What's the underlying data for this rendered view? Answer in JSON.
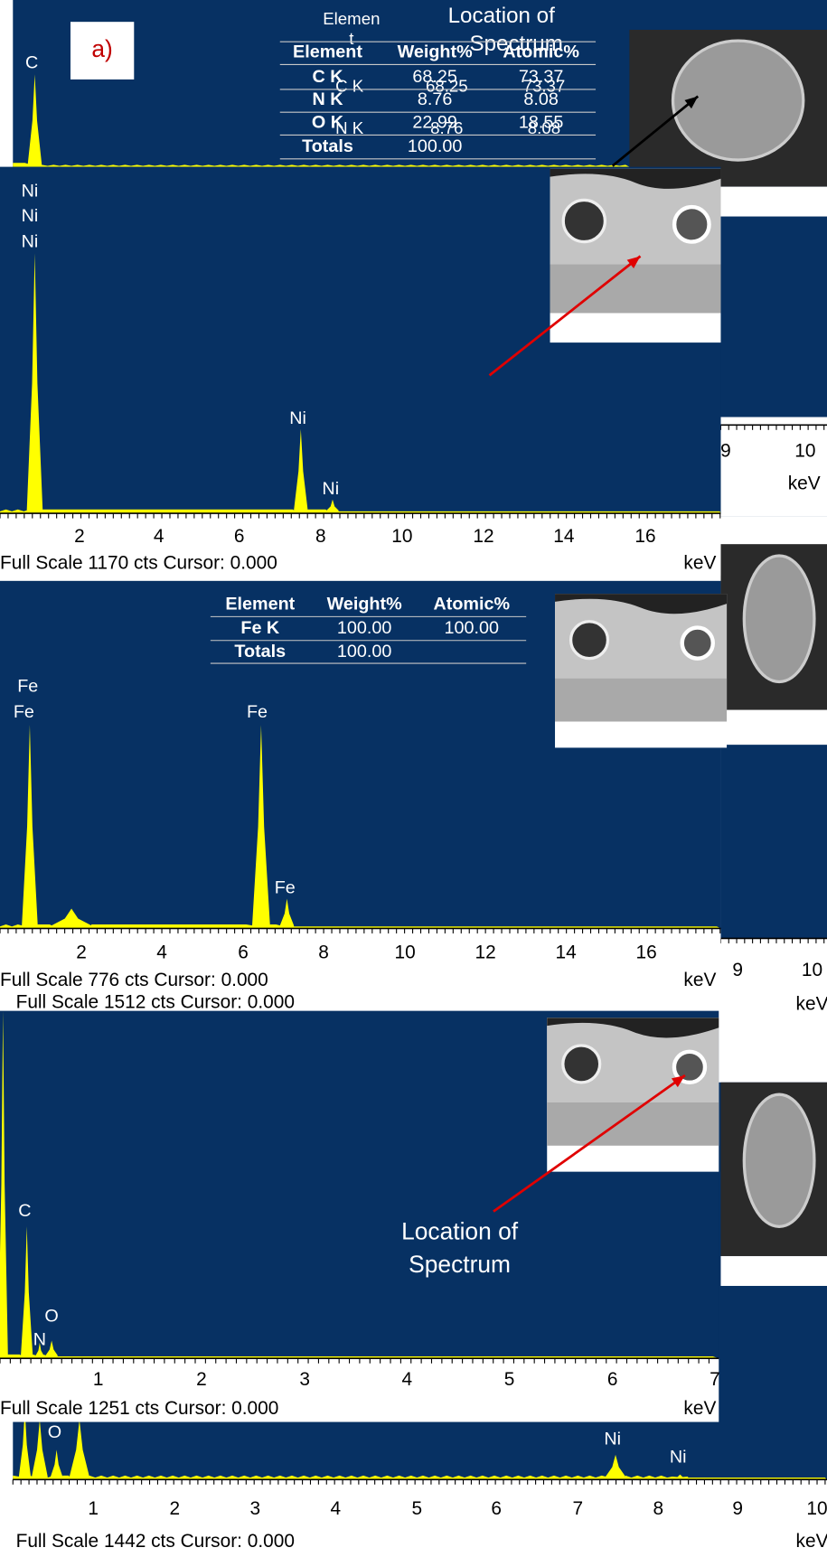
{
  "panel_a": {
    "label": "a)",
    "peak_labels": [
      "C"
    ],
    "overlap_text": [
      "Elemen",
      "t",
      "Location of",
      "Spectrum",
      "C K",
      "68.25",
      "73.37",
      "N K",
      "8.76",
      "8.08"
    ],
    "table": {
      "columns": [
        "Element",
        "Weight%",
        "Atomic%"
      ],
      "rows": [
        [
          "C K",
          "68.25",
          "73.37"
        ],
        [
          "N K",
          "8.76",
          "8.08"
        ],
        [
          "O K",
          "22.99",
          "18.55"
        ],
        [
          "Totals",
          "100.00"
        ]
      ]
    },
    "axis_ticks": [
      "9",
      "10"
    ],
    "axis_unit": "keV"
  },
  "panel_b": {
    "peak_labels": [
      "Ni",
      "Ni",
      "Ni",
      "Ni",
      "Ni"
    ],
    "axis_ticks": [
      "2",
      "4",
      "6",
      "8",
      "10",
      "12",
      "14",
      "16"
    ],
    "axis_unit": "keV",
    "footer": "Full Scale 1170 cts Cursor: 0.000"
  },
  "panel_c": {
    "axis_ticks": [
      "9",
      "10"
    ],
    "axis_unit": "keV",
    "footer": "Full Scale 1512 cts Cursor: 0.000"
  },
  "panel_d": {
    "table": {
      "columns": [
        "Element",
        "Weight%",
        "Atomic%"
      ],
      "rows": [
        [
          "Fe K",
          "100.00",
          "100.00"
        ],
        [
          "Totals",
          "100.00"
        ]
      ]
    },
    "peak_labels": [
      "Fe",
      "Fe",
      "Fe",
      "Fe"
    ],
    "axis_ticks": [
      "2",
      "4",
      "6",
      "8",
      "10",
      "12",
      "14",
      "16"
    ],
    "axis_unit": "keV",
    "footer": "Full Scale 776 cts Cursor: 0.000"
  },
  "panel_e": {
    "peak_labels": [
      "C",
      "N",
      "O"
    ],
    "annotation": [
      "Location of",
      "Spectrum"
    ],
    "axis_ticks": [
      "1",
      "2",
      "3",
      "4",
      "5",
      "6",
      "7"
    ],
    "axis_unit": "keV",
    "footer": "Full Scale 1251 cts Cursor: 0.000"
  },
  "panel_f": {
    "peak_labels": [
      "O",
      "Ni",
      "Ni"
    ],
    "axis_ticks": [
      "1",
      "2",
      "3",
      "4",
      "5",
      "6",
      "7",
      "8",
      "9",
      "10"
    ],
    "axis_unit": "keV",
    "footer": "Full Scale 1442 cts Cursor: 0.000"
  }
}
